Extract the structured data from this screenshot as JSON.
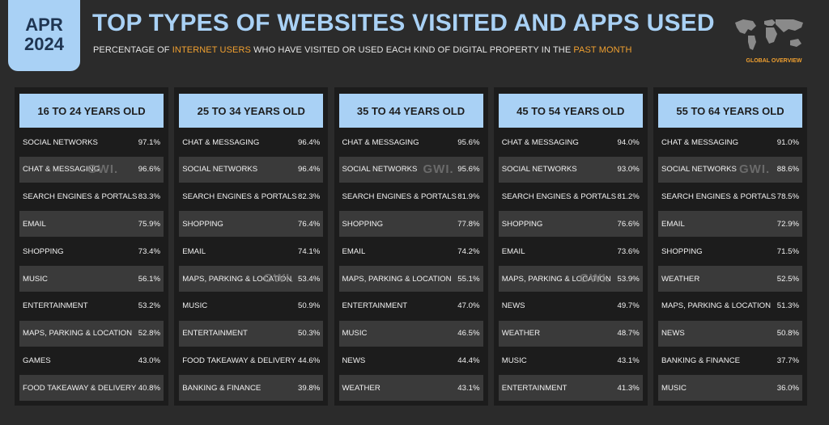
{
  "header": {
    "badge_month": "APR",
    "badge_year": "2024",
    "title": "TOP TYPES OF WEBSITES VISITED AND APPS USED",
    "subtitle_parts": [
      "PERCENTAGE OF ",
      "INTERNET USERS",
      " WHO HAVE VISITED OR USED EACH KIND OF DIGITAL PROPERTY IN THE ",
      "PAST MONTH"
    ],
    "overview_label": "GLOBAL OVERVIEW",
    "watermark": "GWI."
  },
  "colors": {
    "background": "#2b2b2b",
    "accent_blue": "#a9d1f5",
    "highlight_orange": "#f0a030",
    "panel": "#1c1c1c",
    "row_shade": "#3a3a3a"
  },
  "chart_data": {
    "type": "table",
    "title": "TOP TYPES OF WEBSITES VISITED AND APPS USED",
    "panels": [
      {
        "header": "16 TO 24 YEARS OLD",
        "rows": [
          {
            "label": "SOCIAL NETWORKS",
            "value": "97.1%"
          },
          {
            "label": "CHAT & MESSAGING",
            "value": "96.6%"
          },
          {
            "label": "SEARCH ENGINES & PORTALS",
            "value": "83.3%"
          },
          {
            "label": "EMAIL",
            "value": "75.9%"
          },
          {
            "label": "SHOPPING",
            "value": "73.4%"
          },
          {
            "label": "MUSIC",
            "value": "56.1%"
          },
          {
            "label": "ENTERTAINMENT",
            "value": "53.2%"
          },
          {
            "label": "MAPS, PARKING & LOCATION",
            "value": "52.8%"
          },
          {
            "label": "GAMES",
            "value": "43.0%"
          },
          {
            "label": "FOOD TAKEAWAY & DELIVERY",
            "value": "40.8%"
          }
        ]
      },
      {
        "header": "25 TO 34 YEARS OLD",
        "rows": [
          {
            "label": "CHAT & MESSAGING",
            "value": "96.4%"
          },
          {
            "label": "SOCIAL NETWORKS",
            "value": "96.4%"
          },
          {
            "label": "SEARCH ENGINES & PORTALS",
            "value": "82.3%"
          },
          {
            "label": "SHOPPING",
            "value": "76.4%"
          },
          {
            "label": "EMAIL",
            "value": "74.1%"
          },
          {
            "label": "MAPS, PARKING & LOCATION",
            "value": "53.4%"
          },
          {
            "label": "MUSIC",
            "value": "50.9%"
          },
          {
            "label": "ENTERTAINMENT",
            "value": "50.3%"
          },
          {
            "label": "FOOD TAKEAWAY & DELIVERY",
            "value": "44.6%"
          },
          {
            "label": "BANKING & FINANCE",
            "value": "39.8%"
          }
        ]
      },
      {
        "header": "35 TO 44 YEARS OLD",
        "rows": [
          {
            "label": "CHAT & MESSAGING",
            "value": "95.6%"
          },
          {
            "label": "SOCIAL NETWORKS",
            "value": "95.6%"
          },
          {
            "label": "SEARCH ENGINES & PORTALS",
            "value": "81.9%"
          },
          {
            "label": "SHOPPING",
            "value": "77.8%"
          },
          {
            "label": "EMAIL",
            "value": "74.2%"
          },
          {
            "label": "MAPS, PARKING & LOCATION",
            "value": "55.1%"
          },
          {
            "label": "ENTERTAINMENT",
            "value": "47.0%"
          },
          {
            "label": "MUSIC",
            "value": "46.5%"
          },
          {
            "label": "NEWS",
            "value": "44.4%"
          },
          {
            "label": "WEATHER",
            "value": "43.1%"
          }
        ]
      },
      {
        "header": "45 TO 54 YEARS OLD",
        "rows": [
          {
            "label": "CHAT & MESSAGING",
            "value": "94.0%"
          },
          {
            "label": "SOCIAL NETWORKS",
            "value": "93.0%"
          },
          {
            "label": "SEARCH ENGINES & PORTALS",
            "value": "81.2%"
          },
          {
            "label": "SHOPPING",
            "value": "76.6%"
          },
          {
            "label": "EMAIL",
            "value": "73.6%"
          },
          {
            "label": "MAPS, PARKING & LOCATION",
            "value": "53.9%"
          },
          {
            "label": "NEWS",
            "value": "49.7%"
          },
          {
            "label": "WEATHER",
            "value": "48.7%"
          },
          {
            "label": "MUSIC",
            "value": "43.1%"
          },
          {
            "label": "ENTERTAINMENT",
            "value": "41.3%"
          }
        ]
      },
      {
        "header": "55 TO 64 YEARS OLD",
        "rows": [
          {
            "label": "CHAT & MESSAGING",
            "value": "91.0%"
          },
          {
            "label": "SOCIAL NETWORKS",
            "value": "88.6%"
          },
          {
            "label": "SEARCH ENGINES & PORTALS",
            "value": "78.5%"
          },
          {
            "label": "EMAIL",
            "value": "72.9%"
          },
          {
            "label": "SHOPPING",
            "value": "71.5%"
          },
          {
            "label": "WEATHER",
            "value": "52.5%"
          },
          {
            "label": "MAPS, PARKING & LOCATION",
            "value": "51.3%"
          },
          {
            "label": "NEWS",
            "value": "50.8%"
          },
          {
            "label": "BANKING & FINANCE",
            "value": "37.7%"
          },
          {
            "label": "MUSIC",
            "value": "36.0%"
          }
        ]
      }
    ]
  }
}
